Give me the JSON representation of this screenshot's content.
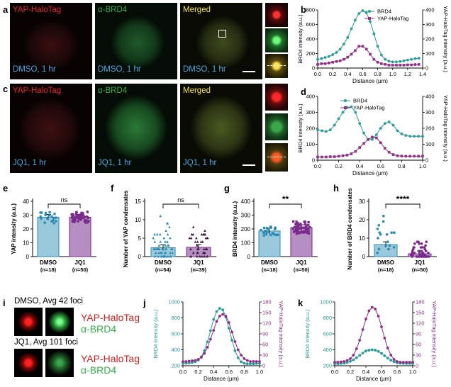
{
  "panels": {
    "a": "a",
    "b": "b",
    "c": "c",
    "d": "d",
    "e": "e",
    "f": "f",
    "g": "g",
    "h": "h",
    "i": "i",
    "j": "j",
    "k": "k"
  },
  "micrographs": {
    "yap_label": "YAP-HaloTag",
    "brd4_label": "α-BRD4",
    "merged_label": "Merged",
    "dmso_cond": "DMSO, 1 hr",
    "jq1_cond": "JQ1, 1 hr",
    "colors": {
      "yap": "#e8242c",
      "brd4": "#2fb34a",
      "merged": "#f2e24a",
      "cond": "#4aa6e0"
    }
  },
  "panel_i": {
    "dmso_title": "DMSO, Avg 42 foci",
    "jq1_title": "JQ1, Avg 101 foci",
    "yap": "YAP-HaloTag",
    "brd4": "α-BRD4"
  },
  "chart_data": [
    {
      "id": "b",
      "type": "line",
      "xlabel": "Distance (µm)",
      "ylabel": "BRD4 intensity (a.u.)",
      "y2label": "YAP-HaloTag intensity (a.u.)",
      "xlim": [
        0,
        1.4
      ],
      "xticks": [
        "0.0",
        "0.2",
        "0.4",
        "0.6",
        "0.8",
        "1.0",
        "1.2",
        "1.4"
      ],
      "ylim": [
        0,
        800
      ],
      "yticks": [
        "0",
        "200",
        "400",
        "600",
        "800"
      ],
      "y2lim": [
        0,
        400
      ],
      "y2ticks": [
        "0",
        "100",
        "200",
        "300",
        "400"
      ],
      "series": [
        {
          "name": "BRD4",
          "axis": "left",
          "color": "#2a9c98",
          "marker": "circle",
          "x": [
            0,
            0.05,
            0.1,
            0.15,
            0.2,
            0.25,
            0.3,
            0.35,
            0.4,
            0.45,
            0.5,
            0.55,
            0.6,
            0.65,
            0.7,
            0.75,
            0.8,
            0.85,
            0.9,
            0.95,
            1.0,
            1.05,
            1.1,
            1.15,
            1.2,
            1.25,
            1.3,
            1.35
          ],
          "y": [
            120,
            130,
            145,
            160,
            185,
            215,
            260,
            330,
            420,
            540,
            660,
            750,
            790,
            760,
            640,
            470,
            300,
            180,
            120,
            95,
            85,
            85,
            90,
            100,
            110,
            120,
            130,
            135
          ]
        },
        {
          "name": "YAP-HaloTag",
          "axis": "right",
          "color": "#8e2f86",
          "marker": "square",
          "x": [
            0,
            0.05,
            0.1,
            0.15,
            0.2,
            0.25,
            0.3,
            0.35,
            0.4,
            0.45,
            0.5,
            0.55,
            0.6,
            0.65,
            0.7,
            0.75,
            0.8,
            0.85,
            0.9,
            0.95,
            1.0,
            1.05,
            1.1,
            1.15,
            1.2,
            1.25,
            1.3,
            1.35
          ],
          "y": [
            25,
            30,
            30,
            35,
            40,
            45,
            50,
            60,
            75,
            95,
            120,
            150,
            150,
            130,
            95,
            60,
            40,
            30,
            25,
            20,
            20,
            20,
            20,
            20,
            22,
            22,
            24,
            25
          ]
        }
      ]
    },
    {
      "id": "d",
      "type": "line",
      "xlabel": "Distance (µm)",
      "ylabel": "BRD4 intensity (a.u.)",
      "y2label": "YAP-HaloTag intensity (a.u.)",
      "xlim": [
        0,
        1.0
      ],
      "xticks": [
        "0.0",
        "0.2",
        "0.4",
        "0.6",
        "0.8",
        "1.0"
      ],
      "ylim": [
        0,
        400
      ],
      "yticks": [
        "0",
        "100",
        "200",
        "300",
        "400"
      ],
      "y2lim": [
        0,
        400
      ],
      "y2ticks": [
        "0",
        "100",
        "200",
        "300",
        "400"
      ],
      "series": [
        {
          "name": "BRD4",
          "axis": "left",
          "color": "#2a9c98",
          "marker": "circle",
          "x": [
            0,
            0.04,
            0.08,
            0.12,
            0.16,
            0.2,
            0.24,
            0.28,
            0.32,
            0.36,
            0.4,
            0.44,
            0.48,
            0.52,
            0.56,
            0.6,
            0.64,
            0.68,
            0.72,
            0.76,
            0.8,
            0.84,
            0.88,
            0.92,
            0.96,
            1.0
          ],
          "y": [
            190,
            185,
            180,
            190,
            220,
            260,
            300,
            330,
            335,
            300,
            230,
            170,
            130,
            130,
            160,
            200,
            230,
            240,
            220,
            185,
            165,
            155,
            150,
            150,
            150,
            150
          ]
        },
        {
          "name": "YAP-HaloTag",
          "axis": "right",
          "color": "#8e2f86",
          "marker": "square",
          "x": [
            0,
            0.04,
            0.08,
            0.12,
            0.16,
            0.2,
            0.24,
            0.28,
            0.32,
            0.36,
            0.4,
            0.44,
            0.48,
            0.52,
            0.56,
            0.6,
            0.64,
            0.68,
            0.72,
            0.76,
            0.8,
            0.84,
            0.88,
            0.92,
            0.96,
            1.0
          ],
          "y": [
            20,
            20,
            20,
            22,
            22,
            25,
            28,
            32,
            40,
            55,
            80,
            105,
            130,
            145,
            140,
            110,
            75,
            50,
            35,
            28,
            26,
            25,
            25,
            25,
            25,
            25
          ]
        }
      ]
    },
    {
      "id": "e",
      "type": "bar",
      "ylabel": "YAP intensity (a.u.)",
      "ylim": [
        0,
        40
      ],
      "yticks": [
        "0",
        "10",
        "20",
        "30",
        "40"
      ],
      "categories": [
        "DMSO",
        "JQ1"
      ],
      "n_labels": [
        "(n=18)",
        "(n=50)"
      ],
      "values": [
        28.5,
        28.5
      ],
      "sig": "ns"
    },
    {
      "id": "f",
      "type": "bar",
      "ylabel": "Number of YAP condensates",
      "ylim": [
        0,
        15
      ],
      "yticks": [
        "0",
        "5",
        "10",
        "15"
      ],
      "categories": [
        "DMSO",
        "JQ1"
      ],
      "n_labels": [
        "(n=54)",
        "(n=39)"
      ],
      "values": [
        2.4,
        2.5
      ],
      "sig": "ns"
    },
    {
      "id": "g",
      "type": "bar",
      "ylabel": "BRD4 intensity (a.u.)",
      "ylim": [
        0,
        400
      ],
      "yticks": [
        "0",
        "100",
        "200",
        "300",
        "400"
      ],
      "categories": [
        "DMSO",
        "JQ1"
      ],
      "n_labels": [
        "(n=18)",
        "(n=50)"
      ],
      "values": [
        185,
        210
      ],
      "sig": "**"
    },
    {
      "id": "h",
      "type": "bar",
      "ylabel": "Number of BRD4 condensates",
      "ylim": [
        0,
        30
      ],
      "yticks": [
        "0",
        "10",
        "20",
        "30"
      ],
      "categories": [
        "DMSO",
        "JQ1"
      ],
      "n_labels": [
        "(n=18)",
        "(n=50)"
      ],
      "values": [
        6.5,
        1.5
      ],
      "sig": "****"
    },
    {
      "id": "j",
      "type": "line",
      "xlabel": "Distance (µm)",
      "ylabel": "BRD4 intensity (a.u.)",
      "y2label": "YAP-HaloTag intensity (a.u.)",
      "xlim": [
        0,
        1.0
      ],
      "xticks": [
        "0.0",
        "0.2",
        "0.4",
        "0.6",
        "0.8",
        "1.0"
      ],
      "ylim": [
        200,
        1000
      ],
      "yticks": [
        "200",
        "400",
        "600",
        "800",
        "1000"
      ],
      "y2lim": [
        0,
        180
      ],
      "y2ticks": [
        "0",
        "30",
        "60",
        "90",
        "120",
        "150",
        "180"
      ],
      "series": [
        {
          "name": "BRD4",
          "axis": "left",
          "color": "#2a9c98",
          "marker": "circle",
          "x": [
            0,
            0.04,
            0.08,
            0.12,
            0.16,
            0.2,
            0.24,
            0.28,
            0.32,
            0.36,
            0.4,
            0.44,
            0.48,
            0.52,
            0.56,
            0.6,
            0.64,
            0.68,
            0.72,
            0.76,
            0.8,
            0.84,
            0.88,
            0.92,
            0.96,
            1.0
          ],
          "y": [
            235,
            232,
            235,
            240,
            250,
            270,
            310,
            390,
            500,
            640,
            780,
            880,
            920,
            900,
            810,
            670,
            520,
            390,
            300,
            250,
            230,
            225,
            225,
            225,
            228,
            230
          ]
        },
        {
          "name": "YAP-HaloTag",
          "axis": "right",
          "color": "#8e2f86",
          "marker": "circle",
          "x": [
            0,
            0.04,
            0.08,
            0.12,
            0.16,
            0.2,
            0.24,
            0.28,
            0.32,
            0.36,
            0.4,
            0.44,
            0.48,
            0.52,
            0.56,
            0.6,
            0.64,
            0.68,
            0.72,
            0.76,
            0.8,
            0.84,
            0.88,
            0.92,
            0.96,
            1.0
          ],
          "y": [
            12,
            12,
            13,
            14,
            15,
            18,
            24,
            35,
            52,
            75,
            100,
            125,
            140,
            145,
            140,
            122,
            95,
            68,
            45,
            30,
            20,
            15,
            12,
            12,
            12,
            12
          ]
        }
      ]
    },
    {
      "id": "k",
      "type": "line",
      "xlabel": "Distance (µm)",
      "ylabel": "BRD4 intensity (a.u.)",
      "y2label": "YAP-HaloTag intensity (a.u.)",
      "xlim": [
        0,
        1.0
      ],
      "xticks": [
        "0.0",
        "0.2",
        "0.4",
        "0.6",
        "0.8",
        "1.0"
      ],
      "ylim": [
        200,
        1000
      ],
      "yticks": [
        "200",
        "400",
        "600",
        "800",
        "1000"
      ],
      "y2lim": [
        0,
        180
      ],
      "y2ticks": [
        "0",
        "30",
        "60",
        "90",
        "120",
        "150",
        "180"
      ],
      "series": [
        {
          "name": "BRD4",
          "axis": "left",
          "color": "#2a9c98",
          "marker": "circle",
          "x": [
            0,
            0.04,
            0.08,
            0.12,
            0.16,
            0.2,
            0.24,
            0.28,
            0.32,
            0.36,
            0.4,
            0.44,
            0.48,
            0.52,
            0.56,
            0.6,
            0.64,
            0.68,
            0.72,
            0.76,
            0.8,
            0.84,
            0.88,
            0.92,
            0.96,
            1.0
          ],
          "y": [
            225,
            225,
            228,
            232,
            240,
            255,
            275,
            300,
            330,
            360,
            385,
            395,
            400,
            395,
            380,
            355,
            325,
            295,
            270,
            250,
            238,
            232,
            230,
            228,
            228,
            228
          ]
        },
        {
          "name": "YAP-HaloTag",
          "axis": "right",
          "color": "#8e2f86",
          "marker": "circle",
          "x": [
            0,
            0.04,
            0.08,
            0.12,
            0.16,
            0.2,
            0.24,
            0.28,
            0.32,
            0.36,
            0.4,
            0.44,
            0.48,
            0.52,
            0.56,
            0.6,
            0.64,
            0.68,
            0.72,
            0.76,
            0.8,
            0.84,
            0.88,
            0.92,
            0.96,
            1.0
          ],
          "y": [
            10,
            10,
            11,
            12,
            15,
            20,
            30,
            48,
            72,
            102,
            132,
            155,
            165,
            160,
            140,
            110,
            78,
            50,
            30,
            18,
            12,
            10,
            10,
            10,
            10,
            10
          ]
        }
      ]
    }
  ]
}
